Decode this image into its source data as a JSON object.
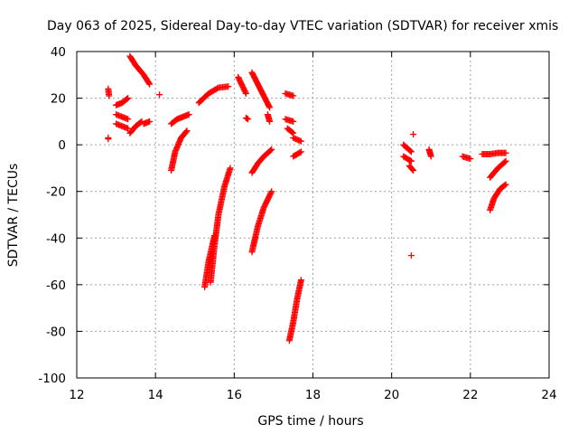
{
  "chart_data": {
    "type": "scatter",
    "title": "Day 063 of 2025, Sidereal Day-to-day VTEC variation (SDTVAR) for receiver xmis",
    "xlabel": "GPS time / hours",
    "ylabel": "SDTVAR / TECUs",
    "xlim": [
      12,
      24
    ],
    "ylim": [
      -100,
      40
    ],
    "xticks": [
      12,
      14,
      16,
      18,
      20,
      22,
      24
    ],
    "yticks": [
      -100,
      -80,
      -60,
      -40,
      -20,
      0,
      20,
      40
    ],
    "grid": true,
    "marker": "plus",
    "color": "#ff0000",
    "segments": [
      {
        "x": [
          12.8,
          12.82
        ],
        "y": [
          24,
          21
        ]
      },
      {
        "x": [
          12.8,
          12.8
        ],
        "y": [
          3,
          2.5
        ]
      },
      {
        "x": [
          13.0,
          13.15,
          13.3
        ],
        "y": [
          17,
          18,
          20
        ]
      },
      {
        "x": [
          13.35,
          13.5,
          13.7,
          13.85
        ],
        "y": [
          38,
          34,
          30,
          26
        ]
      },
      {
        "x": [
          13.0,
          13.3
        ],
        "y": [
          13,
          11
        ]
      },
      {
        "x": [
          13.0,
          13.3
        ],
        "y": [
          9,
          7
        ]
      },
      {
        "x": [
          13.35,
          13.5,
          13.65
        ],
        "y": [
          5,
          8,
          10
        ]
      },
      {
        "x": [
          13.7,
          13.85
        ],
        "y": [
          9,
          10
        ]
      },
      {
        "x": [
          14.1
        ],
        "y": [
          21.5
        ]
      },
      {
        "x": [
          14.4,
          14.55,
          14.7,
          14.85
        ],
        "y": [
          9,
          11,
          12,
          13
        ]
      },
      {
        "x": [
          14.4,
          14.5,
          14.65,
          14.8
        ],
        "y": [
          -11,
          -3,
          3,
          6
        ]
      },
      {
        "x": [
          15.1,
          15.35,
          15.6,
          15.85
        ],
        "y": [
          18,
          22,
          24.5,
          25
        ]
      },
      {
        "x": [
          15.25,
          15.35,
          15.5
        ],
        "y": [
          -61,
          -50,
          -39
        ]
      },
      {
        "x": [
          15.4,
          15.5,
          15.6,
          15.75,
          15.9
        ],
        "y": [
          -59,
          -43,
          -30,
          -18,
          -10
        ]
      },
      {
        "x": [
          16.1,
          16.3
        ],
        "y": [
          29,
          22
        ]
      },
      {
        "x": [
          16.3,
          16.35
        ],
        "y": [
          11.5,
          11
        ]
      },
      {
        "x": [
          16.45,
          16.6,
          16.75,
          16.9
        ],
        "y": [
          31,
          26,
          21,
          16
        ]
      },
      {
        "x": [
          16.85,
          16.9
        ],
        "y": [
          13,
          10
        ]
      },
      {
        "x": [
          16.45,
          16.6,
          16.75,
          16.95
        ],
        "y": [
          -12,
          -8,
          -5,
          -2
        ]
      },
      {
        "x": [
          16.45,
          16.6,
          16.75,
          16.95
        ],
        "y": [
          -46,
          -35,
          -27,
          -20
        ]
      },
      {
        "x": [
          17.3,
          17.5
        ],
        "y": [
          22,
          21
        ]
      },
      {
        "x": [
          17.3,
          17.5
        ],
        "y": [
          11,
          10
        ]
      },
      {
        "x": [
          17.35,
          17.5
        ],
        "y": [
          7,
          5
        ]
      },
      {
        "x": [
          17.5,
          17.7
        ],
        "y": [
          3,
          1.5
        ]
      },
      {
        "x": [
          17.5,
          17.7
        ],
        "y": [
          -5,
          -3
        ]
      },
      {
        "x": [
          17.4,
          17.5,
          17.6,
          17.7
        ],
        "y": [
          -84,
          -76,
          -66,
          -58
        ]
      },
      {
        "x": [
          20.3,
          20.5
        ],
        "y": [
          0,
          -3
        ]
      },
      {
        "x": [
          20.3,
          20.5
        ],
        "y": [
          -5,
          -7
        ]
      },
      {
        "x": [
          20.45,
          20.55
        ],
        "y": [
          -9,
          -11
        ]
      },
      {
        "x": [
          20.55
        ],
        "y": [
          4.5
        ]
      },
      {
        "x": [
          20.5
        ],
        "y": [
          -47.5
        ]
      },
      {
        "x": [
          20.95,
          21.0
        ],
        "y": [
          -2,
          -5
        ]
      },
      {
        "x": [
          21.8,
          22.0
        ],
        "y": [
          -5,
          -6
        ]
      },
      {
        "x": [
          22.3,
          22.5,
          22.7,
          22.9
        ],
        "y": [
          -4,
          -4,
          -3.5,
          -3.5
        ]
      },
      {
        "x": [
          22.5,
          22.7,
          22.9
        ],
        "y": [
          -14,
          -10,
          -7
        ]
      },
      {
        "x": [
          22.5,
          22.6,
          22.75,
          22.9
        ],
        "y": [
          -28,
          -23,
          -19,
          -17
        ]
      }
    ]
  }
}
